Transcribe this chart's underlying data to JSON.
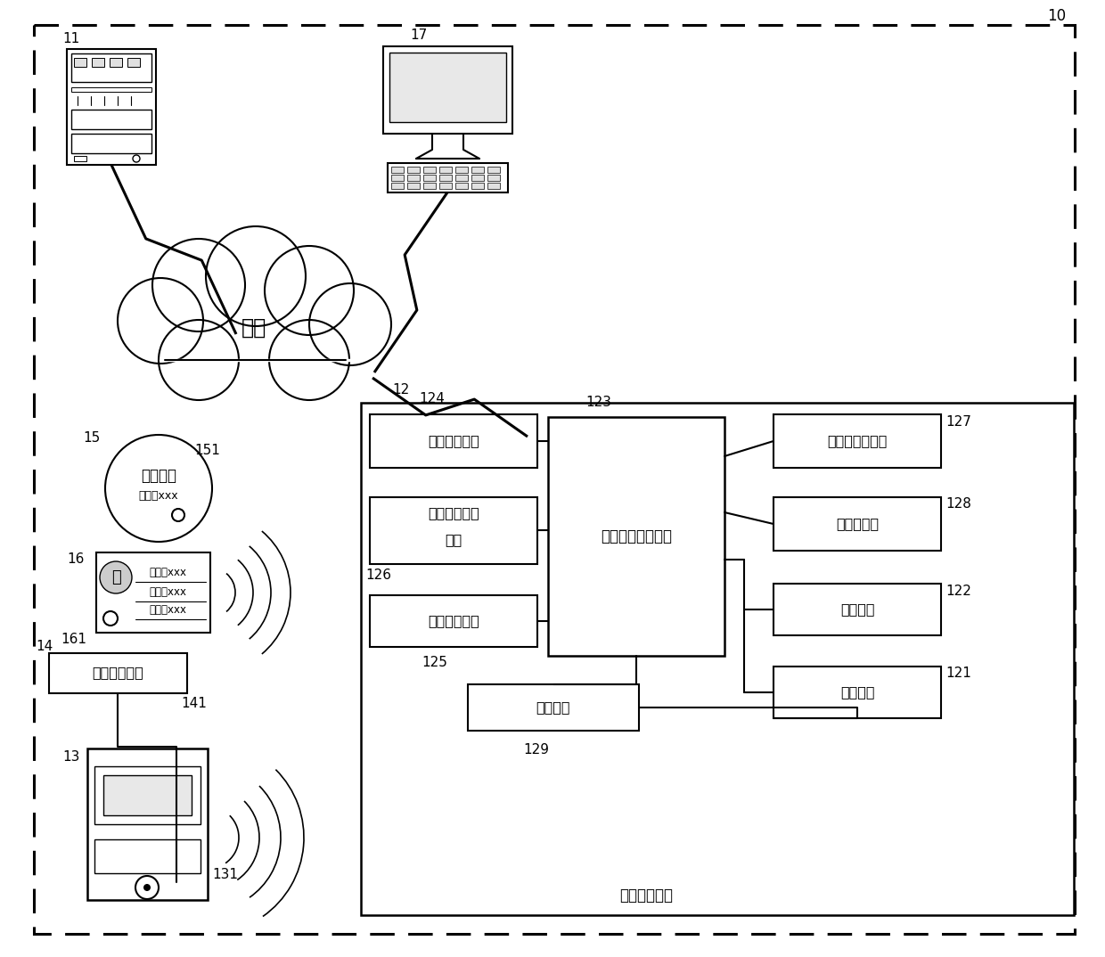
{
  "bg_color": "#ffffff",
  "label_10": "10",
  "label_11": "11",
  "label_12": "12",
  "label_13": "13",
  "label_14": "14",
  "label_15": "15",
  "label_16": "16",
  "label_17": "17",
  "label_121": "121",
  "label_122": "122",
  "label_123": "123",
  "label_124": "124",
  "label_125": "125",
  "label_126": "126",
  "label_127": "127",
  "label_128": "128",
  "label_129": "129",
  "label_131": "131",
  "label_141": "141",
  "label_151": "151",
  "label_161": "161",
  "text_network": "网络",
  "text_wireless": "无线通信电路",
  "text_nfc_line1": "近场通信识别",
  "text_nfc_line2": "电路",
  "text_rfid": "射频识别电路",
  "text_cpu": "中央处理芯片电路",
  "text_power": "电源电路",
  "text_handheld": "手持终端设备",
  "text_lcd": "液晶触摸显示屏",
  "text_speaker": "扬声器电路",
  "text_recorder": "录音装置",
  "text_camera": "摄像装置",
  "text_ground": "现场接地装置",
  "text_workticket": "在此工作",
  "text_ticket_sub": "编号：xxx",
  "text_rfid_tag1": "姓名：xxx",
  "text_rfid_tag2": "部门：xxx",
  "text_rfid_tag3": "职务：xxx"
}
